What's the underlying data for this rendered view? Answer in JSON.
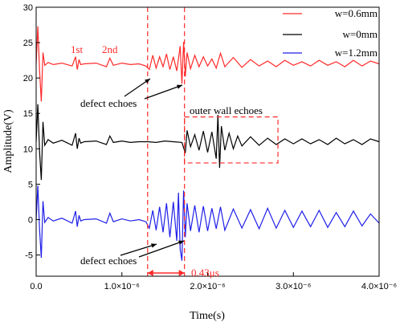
{
  "chart_data": {
    "type": "line",
    "xlabel": "Time(s)",
    "ylabel": "Amplitude(V)",
    "xlim": [
      0,
      4e-06
    ],
    "ylim": [
      -8,
      30
    ],
    "xticks": [
      {
        "value": 0,
        "label": "0.0"
      },
      {
        "value": 1e-06,
        "label": "1.0×10⁻⁶"
      },
      {
        "value": 2e-06,
        "label": "2.0×10⁻⁶"
      },
      {
        "value": 3e-06,
        "label": "3.0×10⁻⁶"
      },
      {
        "value": 4e-06,
        "label": "4.0×10⁻⁶"
      }
    ],
    "yticks": [
      -5,
      0,
      5,
      10,
      15,
      20,
      25,
      30
    ],
    "legend_position": "top-right",
    "series": [
      {
        "name": "w=0.6mm",
        "color": "#ff2a2a",
        "baseline": 22,
        "x": [
          0.0,
          2e-08,
          4e-08,
          6e-08,
          8e-08,
          1e-07,
          1.4e-07,
          2e-07,
          3e-07,
          4.2e-07,
          4.6e-07,
          4.8e-07,
          5e-07,
          5.2e-07,
          5.6e-07,
          7e-07,
          8.2e-07,
          8.6e-07,
          9e-07,
          1e-06,
          1.1e-06,
          1.2e-06,
          1.28e-06,
          1.32e-06,
          1.36e-06,
          1.4e-06,
          1.44e-06,
          1.48e-06,
          1.52e-06,
          1.56e-06,
          1.6e-06,
          1.64e-06,
          1.68e-06,
          1.7e-06,
          1.72e-06,
          1.74e-06,
          1.76e-06,
          1.8e-06,
          1.85e-06,
          1.9e-06,
          1.95e-06,
          2e-06,
          2.05e-06,
          2.1e-06,
          2.15e-06,
          2.2e-06,
          2.3e-06,
          2.4e-06,
          2.5e-06,
          2.6e-06,
          2.7e-06,
          2.8e-06,
          2.9e-06,
          3e-06,
          3.1e-06,
          3.2e-06,
          3.3e-06,
          3.4e-06,
          3.5e-06,
          3.6e-06,
          3.7e-06,
          3.8e-06,
          3.9e-06,
          4e-06
        ],
        "y": [
          22,
          27.3,
          21,
          16.7,
          23.6,
          21.8,
          22.2,
          21.9,
          22.1,
          21.7,
          23.0,
          21.2,
          22.6,
          21.9,
          22.0,
          22.1,
          21.6,
          22.8,
          21.8,
          22.1,
          21.9,
          22.0,
          21.7,
          21.2,
          23.2,
          21.4,
          23.0,
          21.6,
          23.4,
          21.2,
          23.0,
          21.0,
          24.5,
          19.2,
          25.1,
          20.2,
          23.6,
          21.3,
          23.2,
          21.6,
          23.0,
          21.7,
          22.7,
          21.4,
          23.5,
          21.6,
          22.9,
          21.5,
          22.6,
          21.7,
          22.4,
          21.6,
          22.5,
          21.8,
          22.3,
          21.7,
          22.5,
          21.8,
          22.3,
          21.6,
          22.5,
          21.7,
          22.4,
          22.0
        ]
      },
      {
        "name": "w=0mm",
        "color": "#000000",
        "baseline": 11,
        "x": [
          0.0,
          2e-08,
          4e-08,
          6e-08,
          8e-08,
          1e-07,
          1.4e-07,
          2e-07,
          3e-07,
          4.2e-07,
          4.6e-07,
          4.8e-07,
          5e-07,
          5.2e-07,
          5.6e-07,
          7e-07,
          8.2e-07,
          8.6e-07,
          9e-07,
          1e-06,
          1.1e-06,
          1.2e-06,
          1.3e-06,
          1.4e-06,
          1.5e-06,
          1.6e-06,
          1.7e-06,
          1.74e-06,
          1.76e-06,
          1.8e-06,
          1.85e-06,
          1.9e-06,
          1.95e-06,
          2e-06,
          2.05e-06,
          2.1e-06,
          2.12e-06,
          2.14e-06,
          2.16e-06,
          2.2e-06,
          2.25e-06,
          2.3e-06,
          2.35e-06,
          2.4e-06,
          2.5e-06,
          2.6e-06,
          2.7e-06,
          2.8e-06,
          2.9e-06,
          3e-06,
          3.1e-06,
          3.2e-06,
          3.3e-06,
          3.4e-06,
          3.5e-06,
          3.6e-06,
          3.7e-06,
          3.8e-06,
          3.9e-06,
          4e-06
        ],
        "y": [
          11,
          16.3,
          9.5,
          5.6,
          13.8,
          10.5,
          11.3,
          10.8,
          11.2,
          10.5,
          12.2,
          10.0,
          11.5,
          10.8,
          11.0,
          11.1,
          10.6,
          11.8,
          10.9,
          11.1,
          10.9,
          11.0,
          11.0,
          10.9,
          11.1,
          11.0,
          10.9,
          9.4,
          12.6,
          10.3,
          12.0,
          9.8,
          12.5,
          9.5,
          12.4,
          8.6,
          14.8,
          7.3,
          13.2,
          9.8,
          12.2,
          10.0,
          11.8,
          10.4,
          11.7,
          10.5,
          11.5,
          10.6,
          11.4,
          10.7,
          11.4,
          10.7,
          11.3,
          10.6,
          11.5,
          10.7,
          11.3,
          10.6,
          11.4,
          11.0
        ]
      },
      {
        "name": "w=1.2mm",
        "color": "#1f1fe8",
        "baseline": 0,
        "x": [
          0.0,
          2e-08,
          4e-08,
          6e-08,
          8e-08,
          1e-07,
          1.4e-07,
          2e-07,
          3e-07,
          4.2e-07,
          4.6e-07,
          4.8e-07,
          5e-07,
          5.2e-07,
          5.6e-07,
          7e-07,
          8.2e-07,
          8.6e-07,
          9e-07,
          1e-06,
          1.1e-06,
          1.2e-06,
          1.28e-06,
          1.32e-06,
          1.36e-06,
          1.4e-06,
          1.44e-06,
          1.48e-06,
          1.52e-06,
          1.56e-06,
          1.6e-06,
          1.64e-06,
          1.66e-06,
          1.68e-06,
          1.7e-06,
          1.72e-06,
          1.74e-06,
          1.76e-06,
          1.8e-06,
          1.85e-06,
          1.9e-06,
          1.95e-06,
          2e-06,
          2.05e-06,
          2.1e-06,
          2.15e-06,
          2.2e-06,
          2.3e-06,
          2.4e-06,
          2.5e-06,
          2.6e-06,
          2.7e-06,
          2.8e-06,
          2.9e-06,
          3e-06,
          3.1e-06,
          3.2e-06,
          3.3e-06,
          3.4e-06,
          3.5e-06,
          3.6e-06,
          3.7e-06,
          3.8e-06,
          3.9e-06,
          4e-06
        ],
        "y": [
          0,
          4.8,
          -1.5,
          -5.4,
          2.6,
          -0.4,
          0.3,
          -0.2,
          0.2,
          -0.5,
          1.2,
          -1.0,
          0.6,
          -0.2,
          0.0,
          0.1,
          -0.5,
          0.9,
          -0.3,
          0.1,
          -0.2,
          0.0,
          -0.3,
          -1.2,
          1.3,
          -1.5,
          1.8,
          -1.8,
          2.3,
          -2.5,
          2.5,
          -3.0,
          3.8,
          -4.2,
          -5.8,
          4.1,
          -2.5,
          2.3,
          -1.6,
          2.0,
          -1.8,
          1.9,
          -1.6,
          1.6,
          -1.3,
          1.8,
          -1.5,
          1.5,
          -1.2,
          1.4,
          -1.3,
          1.6,
          -1.2,
          1.3,
          -1.1,
          1.2,
          -1.0,
          1.3,
          -1.1,
          1.0,
          -1.0,
          1.2,
          -0.9,
          0.8,
          -0.5
        ]
      }
    ],
    "vlines": [
      {
        "x": 1.3e-06,
        "color": "#ff2a2a",
        "style": "dashed"
      },
      {
        "x": 1.73e-06,
        "color": "#ff2a2a",
        "style": "dashed"
      }
    ],
    "box": {
      "x0": 1.73e-06,
      "x1": 2.82e-06,
      "y0": 8,
      "y1": 14.5,
      "color": "#ff2a2a"
    },
    "annotations": {
      "first": "1st",
      "second": "2nd",
      "defect_top": "defect echoes",
      "defect_bottom": "defect echoes",
      "outer_wall": "outer wall echoes",
      "delta": "0.43μs"
    }
  }
}
